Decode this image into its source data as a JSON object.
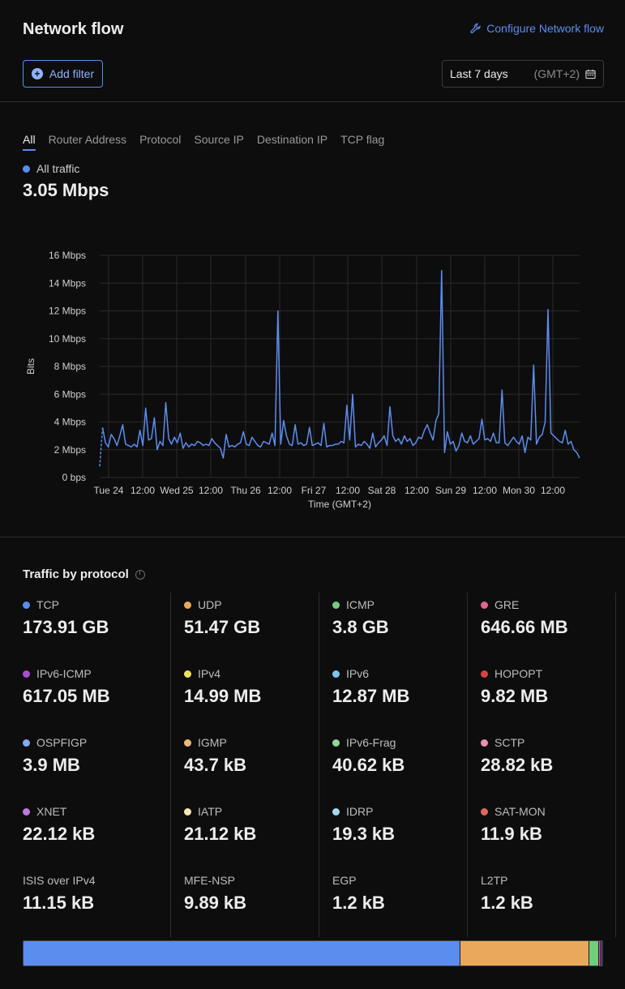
{
  "header": {
    "title": "Network flow",
    "configure_link": "Configure Network flow",
    "add_filter": "Add filter",
    "date_range": "Last 7 days",
    "timezone": "(GMT+2)"
  },
  "tabs": [
    {
      "label": "All",
      "active": true
    },
    {
      "label": "Router Address",
      "active": false
    },
    {
      "label": "Protocol",
      "active": false
    },
    {
      "label": "Source IP",
      "active": false
    },
    {
      "label": "Destination IP",
      "active": false
    },
    {
      "label": "TCP flag",
      "active": false
    }
  ],
  "summary": {
    "series_label": "All traffic",
    "series_color": "#5b8def",
    "total": "3.05 Mbps"
  },
  "chart_data": {
    "type": "line",
    "ylabel": "Bits",
    "xlabel": "Time (GMT+2)",
    "y_unit": "Mbps",
    "ylim": [
      0,
      16
    ],
    "y_ticks": [
      "0 bps",
      "2 Mbps",
      "4 Mbps",
      "6 Mbps",
      "8 Mbps",
      "10 Mbps",
      "12 Mbps",
      "14 Mbps",
      "16 Mbps"
    ],
    "x_ticks": [
      "Tue 24",
      "12:00",
      "Wed 25",
      "12:00",
      "Thu 26",
      "12:00",
      "Fri 27",
      "12:00",
      "Sat 28",
      "12:00",
      "Sun 29",
      "12:00",
      "Mon 30",
      "12:00"
    ],
    "grid": true,
    "series": [
      {
        "color": "#5b8def",
        "x_start": "Tue 24 00:00",
        "x_step_hours": 1.2,
        "values": [
          0.8,
          3.6,
          2.5,
          2.2,
          3.1,
          2.8,
          2.3,
          3.0,
          3.8,
          2.4,
          2.3,
          2.2,
          2.4,
          2.2,
          3.4,
          2.3,
          5.0,
          2.7,
          2.8,
          4.3,
          2.0,
          2.6,
          2.3,
          5.4,
          2.8,
          2.4,
          2.9,
          2.5,
          3.2,
          2.1,
          2.5,
          2.2,
          2.4,
          2.3,
          2.6,
          2.5,
          2.3,
          2.4,
          2.3,
          2.8,
          2.5,
          2.3,
          2.1,
          1.4,
          3.1,
          2.2,
          2.3,
          2.2,
          2.4,
          2.5,
          3.3,
          2.4,
          2.3,
          2.9,
          2.6,
          2.3,
          2.2,
          2.6,
          2.5,
          2.4,
          3.2,
          2.3,
          12.0,
          2.4,
          4.1,
          3.0,
          2.4,
          2.3,
          3.8,
          2.4,
          2.5,
          2.3,
          2.4,
          3.6,
          2.3,
          2.4,
          2.5,
          2.3,
          3.9,
          2.2,
          2.3,
          2.3,
          2.4,
          2.4,
          2.6,
          2.5,
          5.2,
          2.7,
          6.0,
          2.2,
          2.4,
          2.3,
          2.6,
          2.4,
          2.1,
          3.2,
          2.2,
          2.5,
          2.7,
          3.0,
          2.3,
          5.1,
          3.0,
          2.6,
          2.8,
          2.4,
          3.0,
          2.6,
          2.8,
          2.3,
          2.5,
          2.9,
          2.8,
          3.4,
          3.8,
          3.2,
          2.7,
          4.1,
          4.6,
          14.9,
          1.8,
          3.3,
          2.4,
          2.6,
          1.9,
          2.3,
          3.2,
          2.6,
          2.5,
          3.0,
          2.4,
          2.6,
          2.8,
          4.2,
          2.7,
          2.8,
          2.6,
          3.2,
          2.5,
          2.5,
          6.3,
          2.5,
          2.3,
          2.6,
          2.9,
          2.6,
          2.4,
          3.0,
          1.8,
          2.9,
          2.7,
          8.1,
          2.4,
          2.9,
          3.1,
          4.0,
          12.1,
          3.2,
          3.0,
          2.8,
          2.6,
          2.5,
          3.4,
          2.4,
          2.6,
          2.0,
          1.8,
          1.4
        ]
      }
    ]
  },
  "protocols_section": {
    "title": "Traffic by protocol",
    "items": [
      {
        "label": "TCP",
        "value": "173.91 GB",
        "color": "#5b8def"
      },
      {
        "label": "UDP",
        "value": "51.47 GB",
        "color": "#eaa95a"
      },
      {
        "label": "ICMP",
        "value": "3.8 GB",
        "color": "#6fce7e"
      },
      {
        "label": "GRE",
        "value": "646.66 MB",
        "color": "#e2668f"
      },
      {
        "label": "IPv6-ICMP",
        "value": "617.05 MB",
        "color": "#a64fd4"
      },
      {
        "label": "IPv4",
        "value": "14.99 MB",
        "color": "#f2e05b"
      },
      {
        "label": "IPv6",
        "value": "12.87 MB",
        "color": "#7cc6ea"
      },
      {
        "label": "HOPOPT",
        "value": "9.82 MB",
        "color": "#d8423f"
      },
      {
        "label": "OSPFIGP",
        "value": "3.9 MB",
        "color": "#86a8f0"
      },
      {
        "label": "IGMP",
        "value": "43.7 kB",
        "color": "#edb77a"
      },
      {
        "label": "IPv6-Frag",
        "value": "40.62 kB",
        "color": "#8fd89a"
      },
      {
        "label": "SCTP",
        "value": "28.82 kB",
        "color": "#ec8fb0"
      },
      {
        "label": "XNET",
        "value": "22.12 kB",
        "color": "#bc7ae0"
      },
      {
        "label": "IATP",
        "value": "21.12 kB",
        "color": "#f5e6b3"
      },
      {
        "label": "IDRP",
        "value": "19.3 kB",
        "color": "#a7d8ef"
      },
      {
        "label": "SAT-MON",
        "value": "11.9 kB",
        "color": "#e0685f"
      },
      {
        "label": "ISIS over IPv4",
        "value": "11.15 kB",
        "color": ""
      },
      {
        "label": "MFE-NSP",
        "value": "9.89 kB",
        "color": ""
      },
      {
        "label": "EGP",
        "value": "1.2 kB",
        "color": ""
      },
      {
        "label": "L2TP",
        "value": "1.2 kB",
        "color": ""
      }
    ]
  },
  "stack_bar": [
    {
      "color": "#5b8def",
      "share": 0.755
    },
    {
      "color": "#eaa95a",
      "share": 0.223
    },
    {
      "color": "#6fce7e",
      "share": 0.016
    },
    {
      "color": "#e2668f",
      "share": 0.003
    },
    {
      "color": "#a64fd4",
      "share": 0.003
    }
  ]
}
